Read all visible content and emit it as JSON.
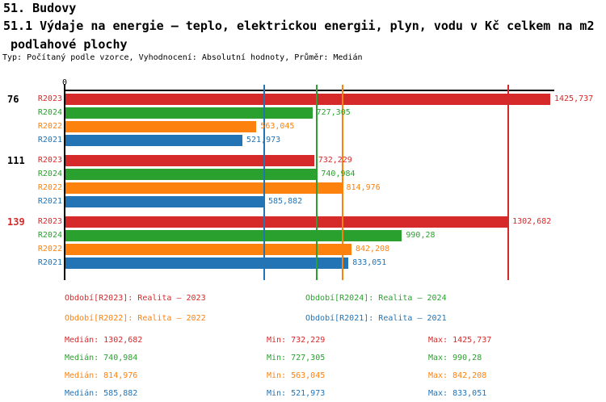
{
  "header": {
    "title": "51. Budovy",
    "subtitle_line1": "51.1 Výdaje na energie – teplo, elektrickou energii, plyn, vodu v Kč celkem na m2",
    "subtitle_line2": " podlahové plochy",
    "meta": "Typ: Počítaný podle vzorce, Vyhodnocení: Absolutní hodnoty, Průměr: Medián"
  },
  "colors": {
    "red": "#d5292a",
    "green": "#2aa12e",
    "orange": "#fd820d",
    "blue": "#2274b5",
    "black": "#000000"
  },
  "chart_data": {
    "type": "bar",
    "orientation": "horizontal",
    "title": "51.1 Výdaje na energie – teplo, elektrickou energii, plyn, vodu v Kč celkem na m2 podlahové plochy",
    "axis": {
      "origin_label": "0",
      "grid": false,
      "x_min": 0,
      "x_ref_max": 1425.737
    },
    "series": [
      {
        "id": "R2023",
        "label": "R2023",
        "color": "#d5292a",
        "median": 1302.682,
        "median_label": "1302,682"
      },
      {
        "id": "R2024",
        "label": "R2024",
        "color": "#2aa12e",
        "median": 740.984,
        "median_label": "740,984"
      },
      {
        "id": "R2022",
        "label": "R2022",
        "color": "#fd820d",
        "median": 814.976,
        "median_label": "814,976"
      },
      {
        "id": "R2021",
        "label": "R2021",
        "color": "#2274b5",
        "median": 585.882,
        "median_label": "585,882"
      }
    ],
    "groups": [
      {
        "label": "76",
        "label_color": "#000000",
        "values": [
          1425.737,
          727.305,
          563.045,
          521.973
        ],
        "value_labels": [
          "1425,737",
          "727,305",
          "563,045",
          "521,973"
        ]
      },
      {
        "label": "111",
        "label_color": "#000000",
        "values": [
          732.229,
          740.984,
          814.976,
          585.882
        ],
        "value_labels": [
          "732,229",
          "740,984",
          "814,976",
          "585,882"
        ]
      },
      {
        "label": "139",
        "label_color": "#d5292a",
        "values": [
          1302.682,
          990.28,
          842.208,
          833.051
        ],
        "value_labels": [
          "1302,682",
          "990,28",
          "842,208",
          "833,051"
        ]
      }
    ]
  },
  "legend": {
    "columns": [
      [
        {
          "id": "R2023",
          "text": "Období[R2023]: Realita – 2023",
          "color": "#d5292a"
        },
        {
          "id": "R2022",
          "text": "Období[R2022]: Realita – 2022",
          "color": "#fd820d"
        }
      ],
      [
        {
          "id": "R2024",
          "text": "Období[R2024]: Realita – 2024",
          "color": "#2aa12e"
        },
        {
          "id": "R2021",
          "text": "Období[R2021]: Realita – 2021",
          "color": "#2274b5"
        }
      ]
    ]
  },
  "stats": {
    "rows": [
      {
        "id": "R2023",
        "color": "#d5292a",
        "median": "Medián: 1302,682",
        "min": "Min: 732,229",
        "max": "Max: 1425,737"
      },
      {
        "id": "R2024",
        "color": "#2aa12e",
        "median": "Medián: 740,984",
        "min": "Min: 727,305",
        "max": "Max: 990,28"
      },
      {
        "id": "R2022",
        "color": "#fd820d",
        "median": "Medián: 814,976",
        "min": "Min: 563,045",
        "max": "Max: 842,208"
      },
      {
        "id": "R2021",
        "color": "#2274b5",
        "median": "Medián: 585,882",
        "min": "Min: 521,973",
        "max": "Max: 833,051"
      }
    ]
  }
}
